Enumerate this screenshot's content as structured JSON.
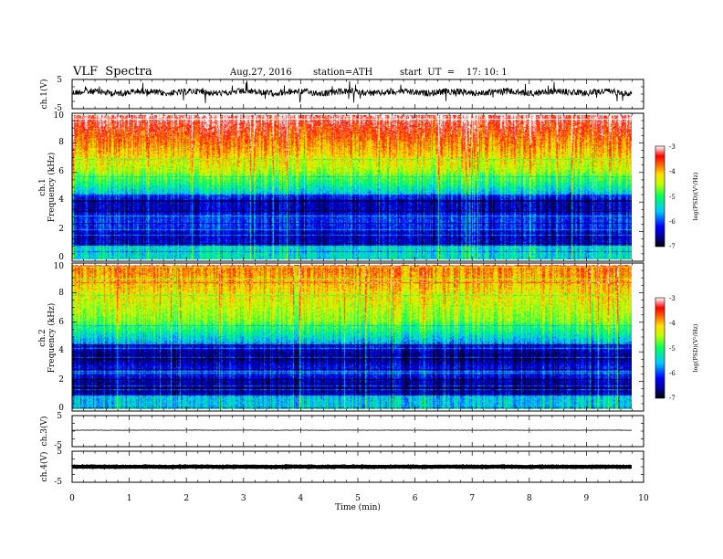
{
  "header": {
    "title": "VLF  Spectra",
    "date": "Aug.27, 2016",
    "station": "station=ATH",
    "start": "start  UT  =    17: 10: 1"
  },
  "chart_data": [
    {
      "type": "line",
      "name": "ch1-waveform",
      "ylabel": "ch.1(V)",
      "ylim": [
        -5,
        5
      ],
      "yticks": [
        "5",
        "-5"
      ],
      "xlim": [
        0,
        10
      ]
    },
    {
      "type": "heatmap",
      "name": "ch1-spectrogram",
      "ylabel": "Frequency  (kHz)",
      "channel_label": "ch.1",
      "ylim": [
        0,
        10
      ],
      "yticks": [
        "0",
        "2",
        "4",
        "6",
        "8",
        "10"
      ],
      "xlim": [
        0,
        10
      ],
      "colorbar": {
        "label": "log(PSD)(V²/Hz)",
        "range": [
          -7,
          -3
        ],
        "ticks": [
          "-3",
          "-4",
          "-5",
          "-6",
          "-7"
        ]
      }
    },
    {
      "type": "heatmap",
      "name": "ch2-spectrogram",
      "ylabel": "Frequency  (kHz)",
      "channel_label": "ch.2",
      "ylim": [
        0,
        10
      ],
      "yticks": [
        "0",
        "2",
        "4",
        "6",
        "8",
        "10"
      ],
      "xlim": [
        0,
        10
      ],
      "colorbar": {
        "label": "log(PSD)(V²/Hz)",
        "range": [
          -7,
          -3
        ],
        "ticks": [
          "-3",
          "-4",
          "-5",
          "-6",
          "-7"
        ]
      }
    },
    {
      "type": "line",
      "name": "ch3-waveform",
      "ylabel": "ch.3(V)",
      "ylim": [
        -5,
        5
      ],
      "yticks": [
        "5",
        "-5"
      ],
      "xlim": [
        0,
        10
      ]
    },
    {
      "type": "line",
      "name": "ch4-waveform",
      "ylabel": "ch.4(V)",
      "ylim": [
        -5,
        5
      ],
      "yticks": [
        "5",
        "-5"
      ],
      "xlim": [
        0,
        10
      ]
    }
  ],
  "xaxis": {
    "label": "Time  (min)",
    "ticks": [
      "0",
      "1",
      "2",
      "3",
      "4",
      "5",
      "6",
      "7",
      "8",
      "9",
      "10"
    ],
    "range": [
      0,
      10
    ]
  }
}
